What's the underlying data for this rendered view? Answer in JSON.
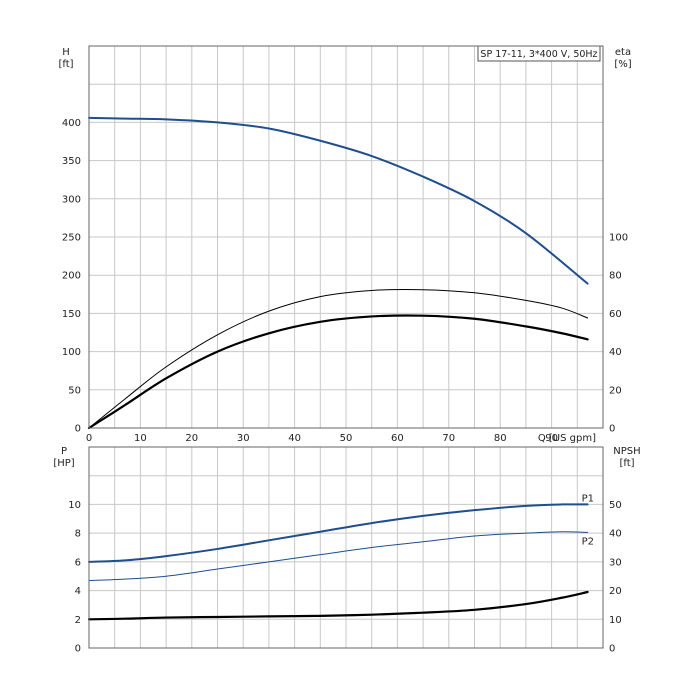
{
  "chart_data": [
    {
      "type": "line",
      "id": "upper",
      "title": "SP 17-11, 3*400 V, 50Hz",
      "xlim": [
        0,
        100
      ],
      "xticks": [
        0,
        10,
        20,
        30,
        40,
        50,
        60,
        70,
        80,
        90
      ],
      "xlabel": "Q [US gpm]",
      "y_left": {
        "label": "H",
        "unit": "[ft]",
        "lim": [
          0,
          500
        ],
        "ticks": [
          0,
          50,
          100,
          150,
          200,
          250,
          300,
          350,
          400
        ]
      },
      "y_right": {
        "label": "eta",
        "unit": "[%]",
        "lim": [
          0,
          200
        ],
        "ticks": [
          0,
          20,
          40,
          60,
          80,
          100
        ]
      },
      "grid": true,
      "series": [
        {
          "key": "H",
          "axis": "left",
          "color": "#1f4e8c",
          "width": 2,
          "x": [
            0,
            7,
            15,
            25,
            35,
            45,
            55,
            65,
            75,
            85,
            97
          ],
          "y": [
            406,
            405,
            404,
            400,
            392,
            376,
            356,
            329,
            297,
            255,
            189
          ]
        },
        {
          "key": "eta_thin",
          "axis": "left",
          "color": "#000000",
          "width": 1,
          "x": [
            0,
            7,
            15,
            25,
            35,
            45,
            55,
            65,
            75,
            85,
            92,
            97
          ],
          "y": [
            0,
            38,
            80,
            122,
            153,
            172,
            180,
            181,
            177,
            167,
            157,
            144
          ]
        },
        {
          "key": "eta_thick",
          "axis": "left",
          "color": "#000000",
          "width": 2.2,
          "x": [
            0,
            7,
            15,
            25,
            35,
            45,
            55,
            65,
            75,
            85,
            92,
            97
          ],
          "y": [
            0,
            30,
            65,
            100,
            124,
            139,
            146,
            147,
            143,
            133,
            124,
            116
          ]
        }
      ]
    },
    {
      "type": "line",
      "id": "lower",
      "xlim": [
        0,
        100
      ],
      "y_left": {
        "label": "P",
        "unit": "[HP]",
        "lim": [
          0,
          14
        ],
        "ticks": [
          0,
          2,
          4,
          6,
          8,
          10
        ]
      },
      "y_right": {
        "label": "NPSH",
        "unit": "[ft]",
        "lim": [
          0,
          70
        ],
        "ticks": [
          0,
          10,
          20,
          30,
          40,
          50
        ]
      },
      "grid": true,
      "series": [
        {
          "key": "P1",
          "name": "P1",
          "axis": "left",
          "color": "#1f4e8c",
          "width": 2,
          "x": [
            0,
            7,
            15,
            25,
            35,
            45,
            55,
            65,
            75,
            85,
            92,
            97
          ],
          "y": [
            6.0,
            6.1,
            6.4,
            6.9,
            7.5,
            8.1,
            8.7,
            9.2,
            9.6,
            9.9,
            10.0,
            10.0
          ]
        },
        {
          "key": "P2",
          "name": "P2",
          "axis": "left",
          "color": "#1f4e8c",
          "width": 1,
          "x": [
            0,
            7,
            15,
            25,
            35,
            45,
            55,
            65,
            75,
            85,
            92,
            97
          ],
          "y": [
            4.7,
            4.8,
            5.0,
            5.5,
            6.0,
            6.5,
            7.0,
            7.4,
            7.8,
            8.0,
            8.1,
            8.05
          ]
        },
        {
          "key": "NPSH",
          "axis": "right",
          "color": "#000000",
          "width": 2.2,
          "x": [
            0,
            7,
            15,
            25,
            35,
            45,
            55,
            65,
            75,
            85,
            92,
            97
          ],
          "y": [
            10.0,
            10.2,
            10.6,
            10.8,
            11.0,
            11.2,
            11.6,
            12.3,
            13.3,
            15.3,
            17.5,
            19.5
          ]
        }
      ]
    }
  ]
}
